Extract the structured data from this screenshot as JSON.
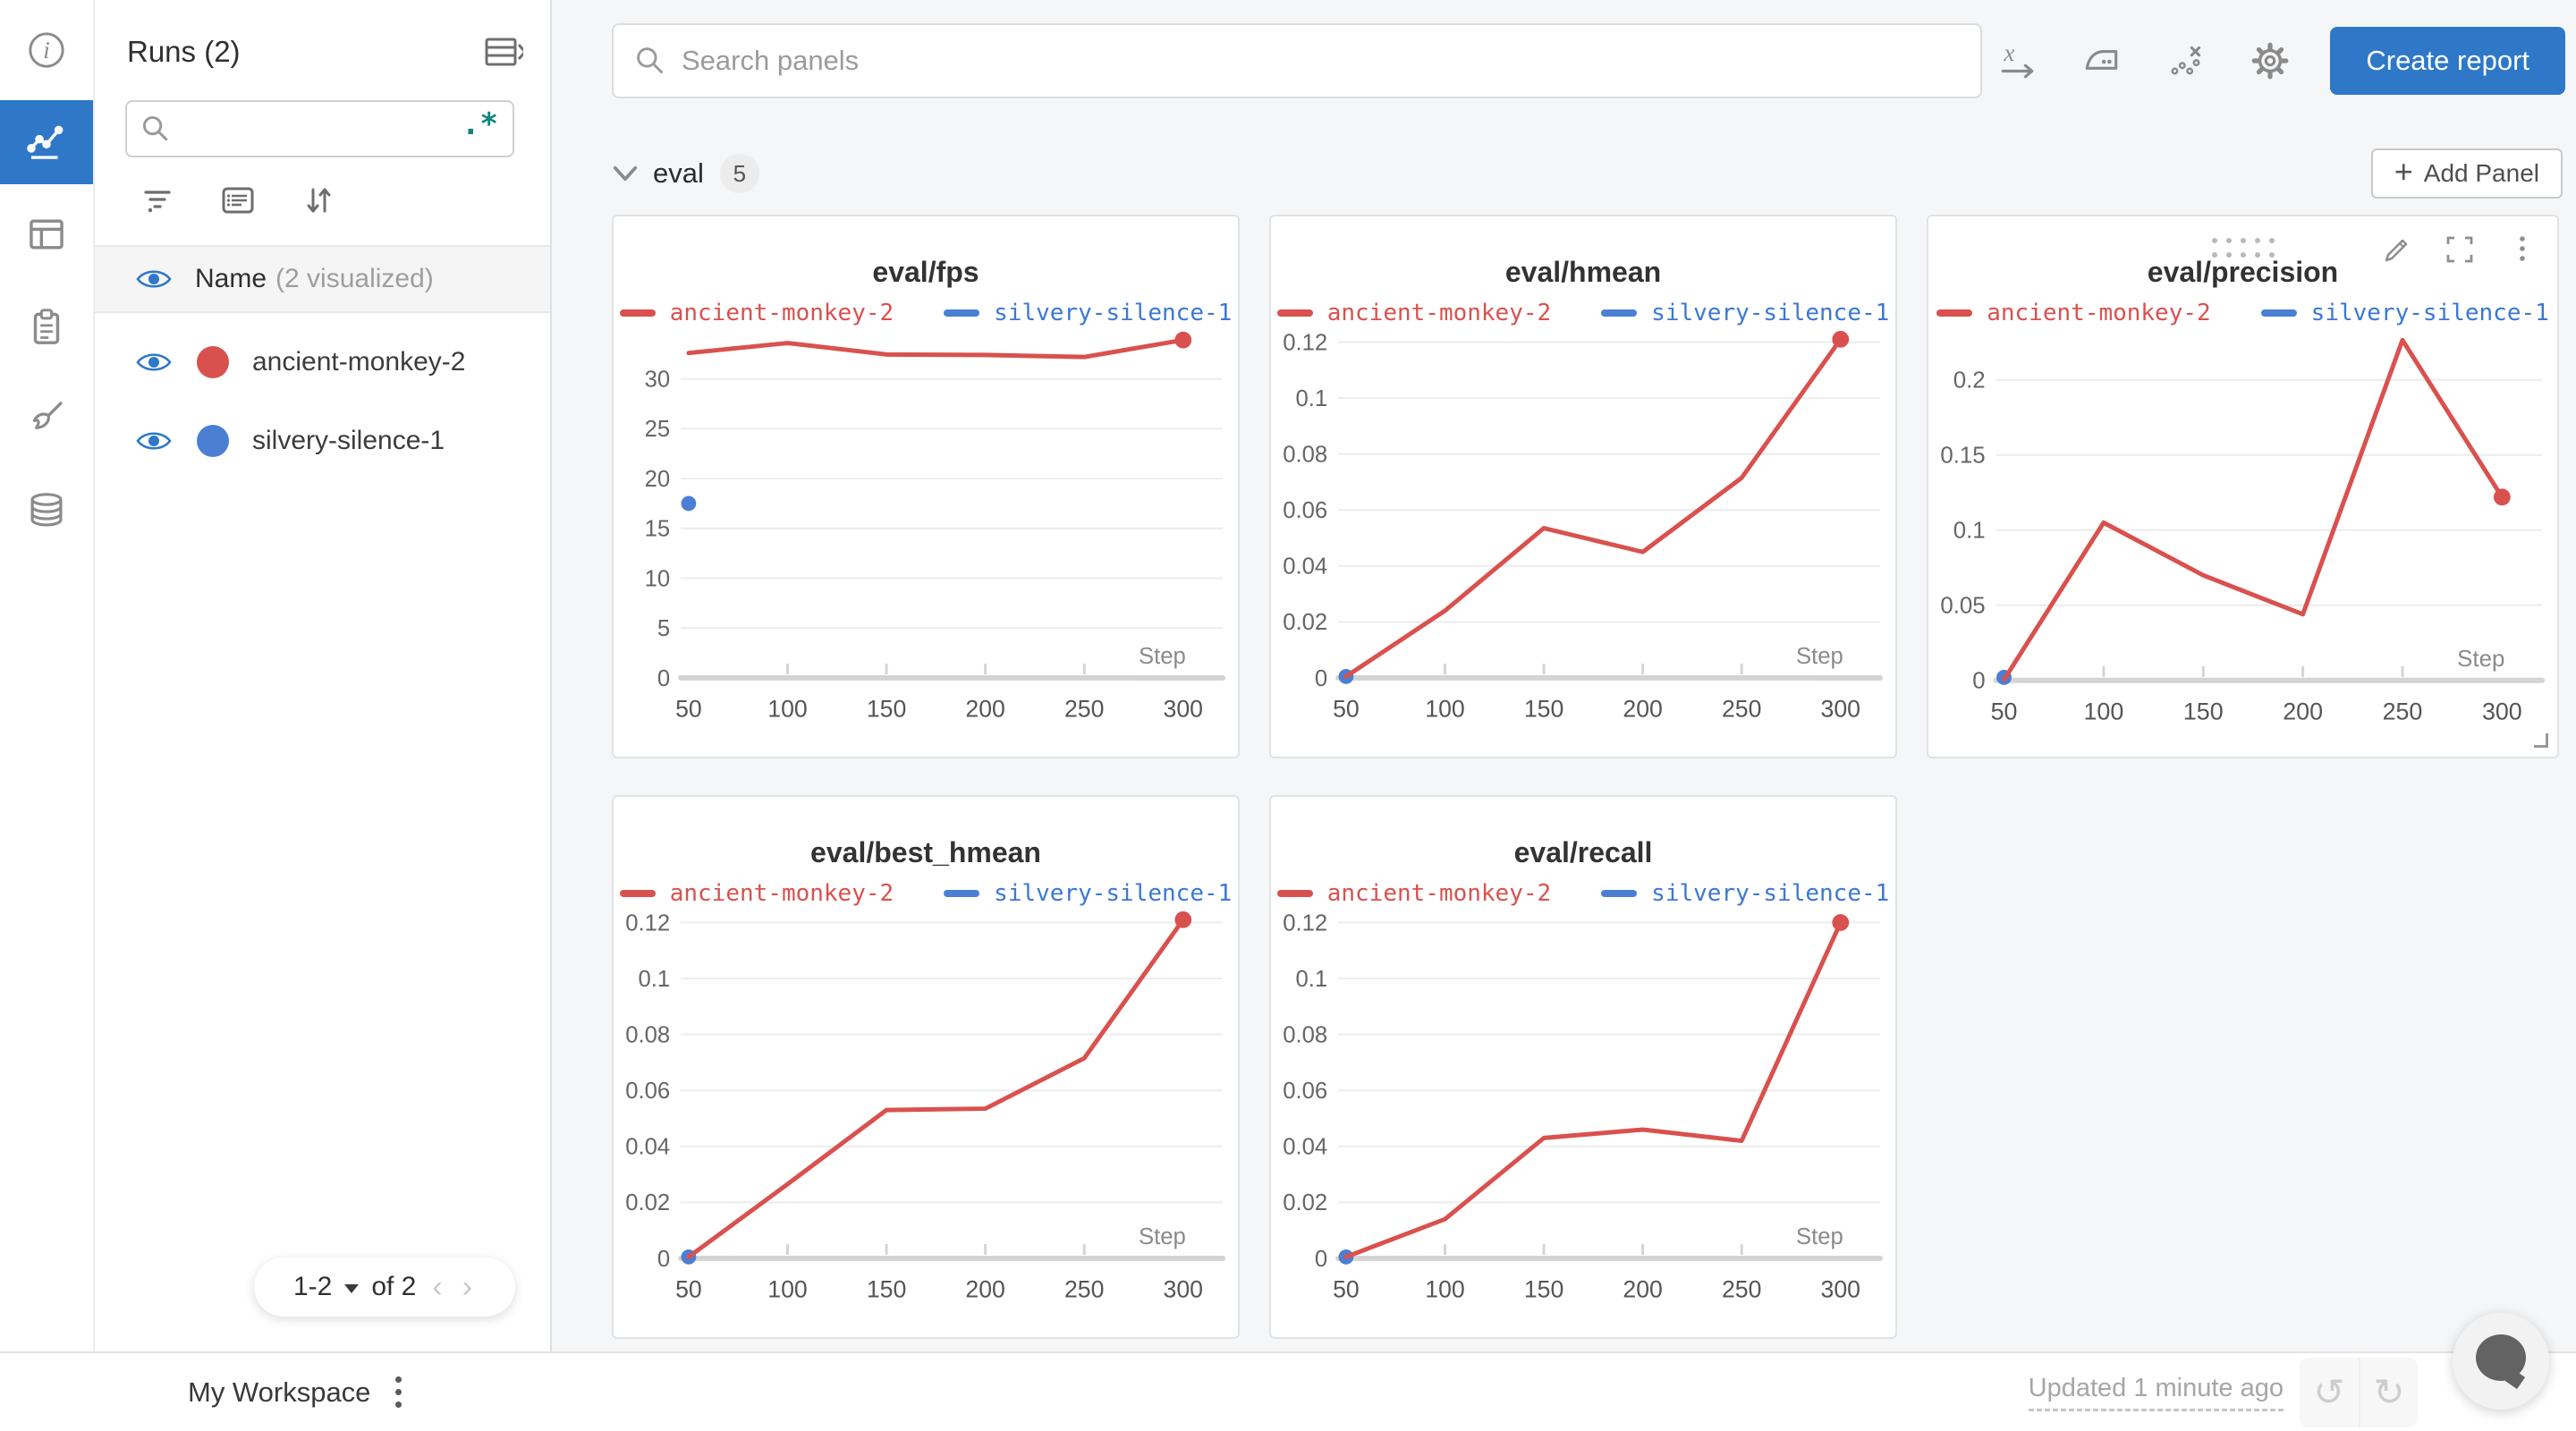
{
  "colors": {
    "primary": "#2e78c7",
    "red": "#d9514e",
    "red_text": "#d9514e",
    "blue": "#4a7fd4",
    "blue_text": "#3b78d3"
  },
  "sidebar": {
    "items": [
      {
        "id": "overview",
        "active": false
      },
      {
        "id": "workspace",
        "active": true
      },
      {
        "id": "runs-table",
        "active": false
      },
      {
        "id": "jobs",
        "active": false
      },
      {
        "id": "sweeps",
        "active": false
      },
      {
        "id": "artifacts",
        "active": false
      }
    ]
  },
  "runs_panel": {
    "title": "Runs (2)",
    "search": {
      "value": "",
      "placeholder": "",
      "regex_label": ".*"
    },
    "header": {
      "label": "Name",
      "note": "(2 visualized)"
    },
    "runs": [
      {
        "name": "ancient-monkey-2",
        "color": "#d9514e"
      },
      {
        "name": "silvery-silence-1",
        "color": "#4a7fd4"
      }
    ],
    "pagination": {
      "range": "1-2",
      "of": "of 2"
    }
  },
  "toolbar": {
    "search_placeholder": "Search panels",
    "create_report_label": "Create report"
  },
  "section": {
    "label": "eval",
    "count": "5",
    "add_panel_label": "Add Panel",
    "add_panel_plus": "+"
  },
  "chart_data": [
    {
      "type": "line",
      "title": "eval/fps",
      "xlabel": "Step",
      "x_ticks": [
        50,
        100,
        150,
        200,
        250,
        300
      ],
      "y_ticks": [
        0,
        5,
        10,
        15,
        20,
        25,
        30
      ],
      "ylim": [
        0,
        34.2
      ],
      "grid": "horizontal",
      "legend_position": "top",
      "hover_controls": false,
      "series": [
        {
          "name": "ancient-monkey-2",
          "color": "#d9514e",
          "label_color": "#d9514e",
          "x": [
            50,
            100,
            150,
            200,
            250,
            300
          ],
          "values": [
            32.6,
            33.6,
            32.45,
            32.4,
            32.2,
            33.9
          ],
          "end_marker": true
        },
        {
          "name": "silvery-silence-1",
          "color": "#4a7fd4",
          "label_color": "#3b78d3",
          "x": [
            50
          ],
          "values": [
            17.5
          ],
          "end_marker": false
        }
      ]
    },
    {
      "type": "line",
      "title": "eval/hmean",
      "xlabel": "Step",
      "x_ticks": [
        50,
        100,
        150,
        200,
        250,
        300
      ],
      "y_ticks": [
        0,
        0.02,
        0.04,
        0.06,
        0.08,
        0.1,
        0.12
      ],
      "ylim": [
        0,
        0.1218
      ],
      "grid": "horizontal",
      "legend_position": "top",
      "hover_controls": false,
      "series": [
        {
          "name": "ancient-monkey-2",
          "color": "#d9514e",
          "label_color": "#d9514e",
          "x": [
            50,
            100,
            150,
            200,
            250,
            300
          ],
          "values": [
            0.0005,
            0.024,
            0.0535,
            0.045,
            0.0715,
            0.121
          ],
          "end_marker": true
        },
        {
          "name": "silvery-silence-1",
          "color": "#4a7fd4",
          "label_color": "#3b78d3",
          "x": [
            50
          ],
          "values": [
            0.0005
          ],
          "end_marker": false
        }
      ]
    },
    {
      "type": "line",
      "title": "eval/precision",
      "xlabel": "Step",
      "x_ticks": [
        50,
        100,
        150,
        200,
        250,
        300
      ],
      "y_ticks": [
        0,
        0.05,
        0.1,
        0.15,
        0.2
      ],
      "ylim": [
        0,
        0.2285
      ],
      "grid": "horizontal",
      "legend_position": "top",
      "hover_controls": true,
      "series": [
        {
          "name": "ancient-monkey-2",
          "color": "#d9514e",
          "label_color": "#d9514e",
          "x": [
            50,
            100,
            150,
            200,
            250,
            300
          ],
          "values": [
            0.0005,
            0.105,
            0.07,
            0.044,
            0.2265,
            0.122
          ],
          "end_marker": true
        },
        {
          "name": "silvery-silence-1",
          "color": "#4a7fd4",
          "label_color": "#3b78d3",
          "x": [
            50
          ],
          "values": [
            0.002
          ],
          "end_marker": false
        }
      ]
    },
    {
      "type": "line",
      "title": "eval/best_hmean",
      "xlabel": "Step",
      "x_ticks": [
        50,
        100,
        150,
        200,
        250,
        300
      ],
      "y_ticks": [
        0,
        0.02,
        0.04,
        0.06,
        0.08,
        0.1,
        0.12
      ],
      "ylim": [
        0,
        0.1218
      ],
      "grid": "horizontal",
      "legend_position": "top",
      "hover_controls": false,
      "series": [
        {
          "name": "ancient-monkey-2",
          "color": "#d9514e",
          "label_color": "#d9514e",
          "x": [
            50,
            100,
            150,
            200,
            250,
            300
          ],
          "values": [
            0.0005,
            0.0265,
            0.053,
            0.0535,
            0.0715,
            0.121
          ],
          "end_marker": true
        },
        {
          "name": "silvery-silence-1",
          "color": "#4a7fd4",
          "label_color": "#3b78d3",
          "x": [
            50
          ],
          "values": [
            0.0005
          ],
          "end_marker": false
        }
      ]
    },
    {
      "type": "line",
      "title": "eval/recall",
      "xlabel": "Step",
      "x_ticks": [
        50,
        100,
        150,
        200,
        250,
        300
      ],
      "y_ticks": [
        0,
        0.02,
        0.04,
        0.06,
        0.08,
        0.1,
        0.12
      ],
      "ylim": [
        0,
        0.1218
      ],
      "grid": "horizontal",
      "legend_position": "top",
      "hover_controls": false,
      "series": [
        {
          "name": "ancient-monkey-2",
          "color": "#d9514e",
          "label_color": "#d9514e",
          "x": [
            50,
            100,
            150,
            200,
            250,
            300
          ],
          "values": [
            0.0005,
            0.014,
            0.043,
            0.046,
            0.042,
            0.12
          ],
          "end_marker": true
        },
        {
          "name": "silvery-silence-1",
          "color": "#4a7fd4",
          "label_color": "#3b78d3",
          "x": [
            50
          ],
          "values": [
            0.0005
          ],
          "end_marker": false
        }
      ]
    }
  ],
  "footer": {
    "workspace_label": "My Workspace",
    "updated_label": "Updated 1 minute ago"
  }
}
